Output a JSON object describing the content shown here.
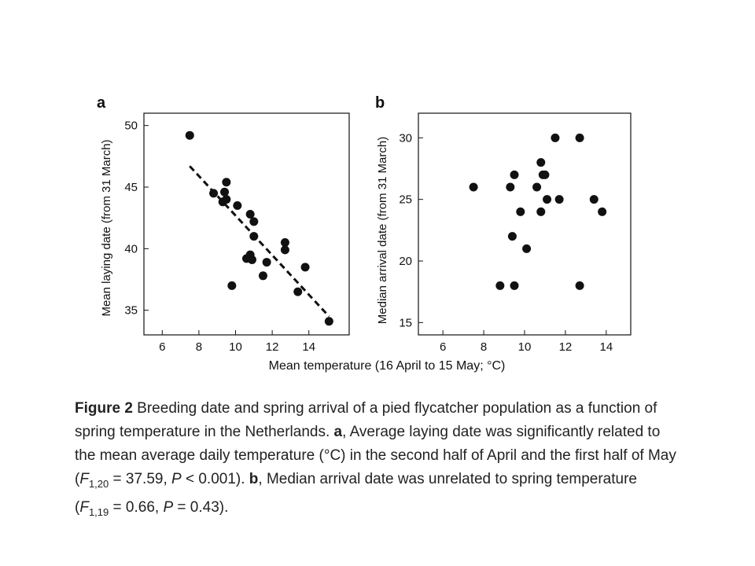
{
  "panels": {
    "a": {
      "label": "a",
      "ylabel": "Mean laying date (from 31 March)"
    },
    "b": {
      "label": "b",
      "ylabel": "Median arrival date (from 31 March)"
    }
  },
  "shared_xlabel": "Mean temperature (16 April to 15 May; °C)",
  "caption": {
    "fig_label": "Figure 2",
    "line1_rest": " Breeding date and spring arrival of a pied flycatcher population as a function of",
    "line2_pre": "spring temperature in the Netherlands. ",
    "line2_a": "a",
    "line2_post": ", Average laying date was significantly related to",
    "line3": "the mean average daily temperature (°C) in the second half of April and the first half of May",
    "line4_open": "(",
    "line4_F": "F",
    "line4_sub": "1,20",
    "line4_mid": " = 37.59, ",
    "line4_P": "P",
    "line4_end": " < 0.001). ",
    "line4_b": "b",
    "line4_tail": ", Median arrival date was unrelated to spring temperature",
    "line5_open": "(",
    "line5_F": "F",
    "line5_sub": "1,19",
    "line5_mid": " = 0.66, ",
    "line5_P": "P",
    "line5_end": " = 0.43)."
  },
  "chart_data": [
    {
      "type": "scatter",
      "panel": "a",
      "xlabel": "Mean temperature (16 April to 15 May; °C)",
      "ylabel": "Mean laying date (from 31 March)",
      "xlim": [
        5,
        16.2
      ],
      "ylim": [
        33,
        51
      ],
      "xticks": [
        6,
        8,
        10,
        12,
        14
      ],
      "yticks": [
        35,
        40,
        45,
        50
      ],
      "points": [
        [
          7.5,
          49.2
        ],
        [
          8.8,
          44.5
        ],
        [
          9.3,
          43.8
        ],
        [
          9.4,
          44.6
        ],
        [
          9.5,
          45.4
        ],
        [
          9.5,
          44.0
        ],
        [
          10.1,
          43.5
        ],
        [
          10.6,
          39.2
        ],
        [
          10.8,
          42.8
        ],
        [
          10.8,
          39.5
        ],
        [
          10.9,
          39.1
        ],
        [
          11.0,
          41.0
        ],
        [
          11.0,
          42.2
        ],
        [
          11.5,
          37.8
        ],
        [
          11.7,
          38.9
        ],
        [
          12.7,
          40.5
        ],
        [
          12.7,
          39.9
        ],
        [
          13.4,
          36.5
        ],
        [
          13.8,
          38.5
        ],
        [
          15.1,
          34.1
        ],
        [
          9.8,
          37.0
        ]
      ],
      "trendline": {
        "x": [
          7.5,
          15.1
        ],
        "y": [
          46.7,
          34.5
        ],
        "style": "dashed"
      },
      "grid": false
    },
    {
      "type": "scatter",
      "panel": "b",
      "xlabel": "Mean temperature (16 April to 15 May; °C)",
      "ylabel": "Median arrival date (from 31 March)",
      "xlim": [
        4.8,
        15.2
      ],
      "ylim": [
        14,
        32
      ],
      "xticks": [
        6,
        8,
        10,
        12,
        14
      ],
      "yticks": [
        15,
        20,
        25,
        30
      ],
      "points": [
        [
          7.5,
          26
        ],
        [
          8.8,
          18
        ],
        [
          9.3,
          26
        ],
        [
          9.4,
          22
        ],
        [
          9.5,
          27
        ],
        [
          9.5,
          18
        ],
        [
          9.8,
          24
        ],
        [
          10.1,
          21
        ],
        [
          10.6,
          26
        ],
        [
          10.8,
          24
        ],
        [
          10.8,
          28
        ],
        [
          10.9,
          27
        ],
        [
          11.0,
          27
        ],
        [
          11.1,
          25
        ],
        [
          11.5,
          30
        ],
        [
          11.7,
          25
        ],
        [
          12.7,
          30
        ],
        [
          12.7,
          18
        ],
        [
          13.4,
          25
        ],
        [
          13.8,
          24
        ]
      ],
      "grid": false
    }
  ]
}
